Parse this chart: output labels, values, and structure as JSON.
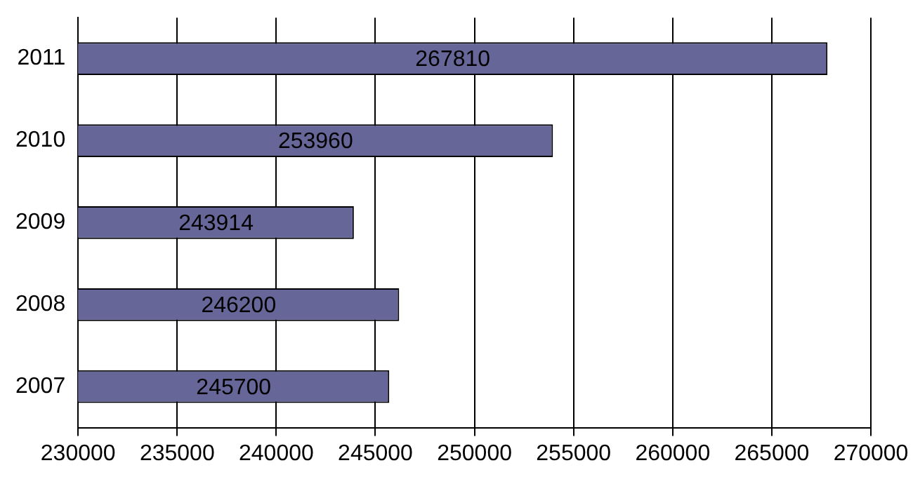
{
  "chart_data": {
    "type": "bar",
    "orientation": "horizontal",
    "categories": [
      "2011",
      "2010",
      "2009",
      "2008",
      "2007"
    ],
    "values": [
      267810,
      253960,
      243914,
      246200,
      245700
    ],
    "color": "#666699",
    "xlim": [
      230000,
      270000
    ],
    "xticks": [
      230000,
      235000,
      240000,
      245000,
      250000,
      255000,
      260000,
      265000,
      270000
    ],
    "grid": "x",
    "legend": false,
    "data_labels": true
  }
}
